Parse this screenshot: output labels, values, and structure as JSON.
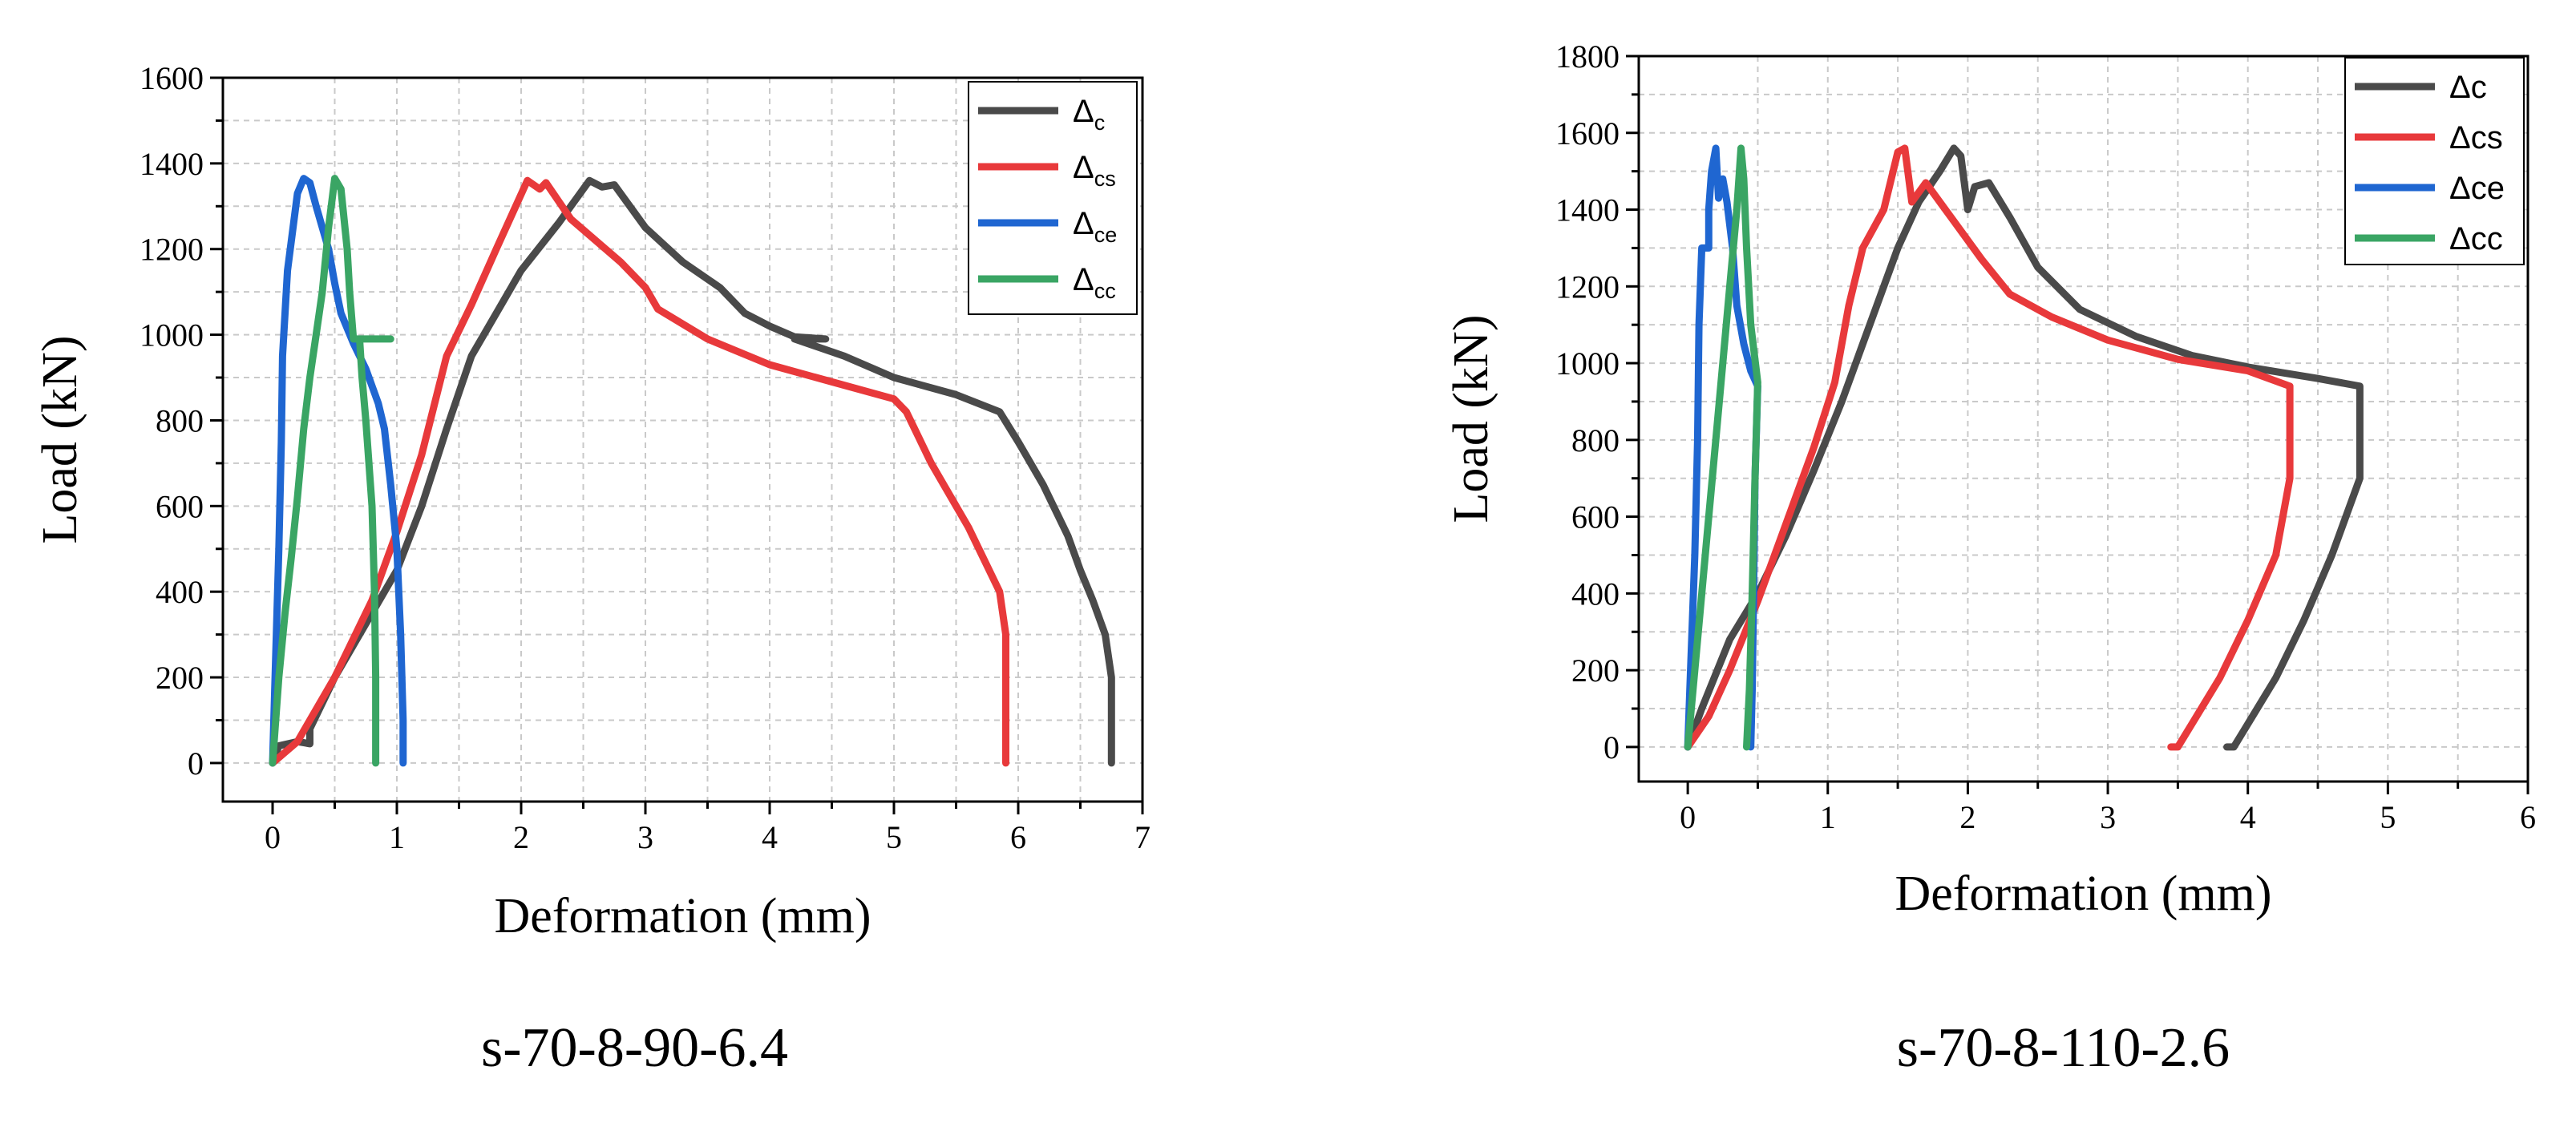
{
  "chart_data": [
    {
      "type": "line",
      "caption": "s-70-8-90-6.4",
      "xlabel": "Deformation (mm)",
      "ylabel": "Load (kN)",
      "xlim": [
        -0.4,
        7
      ],
      "ylim": [
        -90,
        1600
      ],
      "xticks": [
        0,
        1,
        2,
        3,
        4,
        5,
        6,
        7
      ],
      "yticks": [
        0,
        200,
        400,
        600,
        800,
        1000,
        1200,
        1400,
        1600
      ],
      "grid": true,
      "legend_position": "top-right",
      "legend_style": "subscript",
      "series": [
        {
          "name": "Δc",
          "base": "Δ",
          "sub": "c",
          "color": "#4a4a4a",
          "points": [
            [
              0,
              0
            ],
            [
              0.05,
              40
            ],
            [
              0.2,
              50
            ],
            [
              0.3,
              45
            ],
            [
              0.3,
              80
            ],
            [
              0.5,
              200
            ],
            [
              0.8,
              350
            ],
            [
              1,
              450
            ],
            [
              1.2,
              600
            ],
            [
              1.4,
              780
            ],
            [
              1.6,
              950
            ],
            [
              1.8,
              1050
            ],
            [
              2.0,
              1150
            ],
            [
              2.3,
              1260
            ],
            [
              2.55,
              1360
            ],
            [
              2.65,
              1345
            ],
            [
              2.75,
              1350
            ],
            [
              2.85,
              1310
            ],
            [
              3.0,
              1250
            ],
            [
              3.3,
              1170
            ],
            [
              3.6,
              1110
            ],
            [
              3.8,
              1050
            ],
            [
              4.0,
              1020
            ],
            [
              4.2,
              995
            ],
            [
              4.45,
              990
            ],
            [
              4.2,
              990
            ],
            [
              4.6,
              950
            ],
            [
              5.0,
              900
            ],
            [
              5.5,
              860
            ],
            [
              5.85,
              820
            ],
            [
              6.0,
              750
            ],
            [
              6.2,
              650
            ],
            [
              6.4,
              530
            ],
            [
              6.5,
              450
            ],
            [
              6.6,
              380
            ],
            [
              6.7,
              300
            ],
            [
              6.75,
              200
            ],
            [
              6.75,
              0
            ]
          ]
        },
        {
          "name": "Δcs",
          "base": "Δ",
          "sub": "cs",
          "color": "#e8393b",
          "points": [
            [
              0,
              0
            ],
            [
              0.2,
              50
            ],
            [
              0.5,
              200
            ],
            [
              0.8,
              380
            ],
            [
              1.0,
              540
            ],
            [
              1.2,
              720
            ],
            [
              1.4,
              950
            ],
            [
              1.6,
              1070
            ],
            [
              1.8,
              1200
            ],
            [
              2.05,
              1360
            ],
            [
              2.15,
              1340
            ],
            [
              2.2,
              1355
            ],
            [
              2.4,
              1270
            ],
            [
              2.8,
              1170
            ],
            [
              3.0,
              1110
            ],
            [
              3.1,
              1060
            ],
            [
              3.5,
              990
            ],
            [
              4.0,
              930
            ],
            [
              4.5,
              890
            ],
            [
              5.0,
              850
            ],
            [
              5.1,
              820
            ],
            [
              5.3,
              700
            ],
            [
              5.6,
              550
            ],
            [
              5.85,
              400
            ],
            [
              5.9,
              300
            ],
            [
              5.9,
              150
            ],
            [
              5.9,
              0
            ]
          ]
        },
        {
          "name": "Δce",
          "base": "Δ",
          "sub": "ce",
          "color": "#1f66d1",
          "points": [
            [
              0,
              0
            ],
            [
              0.02,
              200
            ],
            [
              0.05,
              500
            ],
            [
              0.07,
              750
            ],
            [
              0.08,
              950
            ],
            [
              0.12,
              1150
            ],
            [
              0.2,
              1330
            ],
            [
              0.25,
              1365
            ],
            [
              0.3,
              1355
            ],
            [
              0.35,
              1300
            ],
            [
              0.45,
              1200
            ],
            [
              0.5,
              1120
            ],
            [
              0.55,
              1050
            ],
            [
              0.65,
              980
            ],
            [
              0.75,
              920
            ],
            [
              0.85,
              840
            ],
            [
              0.9,
              780
            ],
            [
              0.95,
              650
            ],
            [
              1.0,
              500
            ],
            [
              1.03,
              300
            ],
            [
              1.05,
              100
            ],
            [
              1.05,
              0
            ]
          ]
        },
        {
          "name": "Δcc",
          "base": "Δ",
          "sub": "cc",
          "color": "#3aa564",
          "points": [
            [
              0,
              0
            ],
            [
              0.02,
              80
            ],
            [
              0.05,
              200
            ],
            [
              0.1,
              350
            ],
            [
              0.15,
              480
            ],
            [
              0.2,
              620
            ],
            [
              0.25,
              780
            ],
            [
              0.3,
              900
            ],
            [
              0.35,
              1000
            ],
            [
              0.4,
              1100
            ],
            [
              0.45,
              1250
            ],
            [
              0.5,
              1365
            ],
            [
              0.55,
              1340
            ],
            [
              0.6,
              1200
            ],
            [
              0.62,
              1100
            ],
            [
              0.65,
              990
            ],
            [
              0.95,
              990
            ],
            [
              0.7,
              990
            ],
            [
              0.72,
              900
            ],
            [
              0.75,
              800
            ],
            [
              0.8,
              600
            ],
            [
              0.82,
              400
            ],
            [
              0.83,
              200
            ],
            [
              0.83,
              0
            ]
          ]
        }
      ]
    },
    {
      "type": "line",
      "caption": "s-70-8-110-2.6",
      "xlabel": "Deformation (mm)",
      "ylabel": "Load (kN)",
      "xlim": [
        -0.35,
        6
      ],
      "ylim": [
        -90,
        1800
      ],
      "xticks": [
        0,
        1,
        2,
        3,
        4,
        5,
        6
      ],
      "yticks": [
        0,
        200,
        400,
        600,
        800,
        1000,
        1200,
        1400,
        1600,
        1800
      ],
      "grid": true,
      "legend_position": "top-right",
      "legend_style": "plain",
      "series": [
        {
          "name": "Δc",
          "color": "#4a4a4a",
          "points": [
            [
              0,
              0
            ],
            [
              0.1,
              100
            ],
            [
              0.3,
              280
            ],
            [
              0.5,
              400
            ],
            [
              0.7,
              550
            ],
            [
              0.9,
              720
            ],
            [
              1.1,
              900
            ],
            [
              1.25,
              1050
            ],
            [
              1.4,
              1200
            ],
            [
              1.5,
              1300
            ],
            [
              1.65,
              1420
            ],
            [
              1.8,
              1500
            ],
            [
              1.9,
              1560
            ],
            [
              1.95,
              1540
            ],
            [
              2.0,
              1400
            ],
            [
              2.05,
              1460
            ],
            [
              2.15,
              1470
            ],
            [
              2.3,
              1380
            ],
            [
              2.5,
              1250
            ],
            [
              2.8,
              1140
            ],
            [
              3.2,
              1070
            ],
            [
              3.6,
              1020
            ],
            [
              4.0,
              990
            ],
            [
              4.5,
              960
            ],
            [
              4.8,
              940
            ],
            [
              4.8,
              700
            ],
            [
              4.6,
              500
            ],
            [
              4.4,
              330
            ],
            [
              4.2,
              180
            ],
            [
              4.0,
              60
            ],
            [
              3.9,
              0
            ],
            [
              3.85,
              0
            ]
          ]
        },
        {
          "name": "Δcs",
          "color": "#e8393b",
          "points": [
            [
              0,
              0
            ],
            [
              0.15,
              80
            ],
            [
              0.3,
              200
            ],
            [
              0.5,
              380
            ],
            [
              0.7,
              580
            ],
            [
              0.9,
              780
            ],
            [
              1.05,
              950
            ],
            [
              1.15,
              1150
            ],
            [
              1.25,
              1300
            ],
            [
              1.4,
              1400
            ],
            [
              1.5,
              1550
            ],
            [
              1.55,
              1560
            ],
            [
              1.6,
              1420
            ],
            [
              1.7,
              1470
            ],
            [
              1.9,
              1370
            ],
            [
              2.1,
              1270
            ],
            [
              2.3,
              1180
            ],
            [
              2.6,
              1120
            ],
            [
              3.0,
              1060
            ],
            [
              3.5,
              1010
            ],
            [
              4.0,
              980
            ],
            [
              4.3,
              940
            ],
            [
              4.3,
              700
            ],
            [
              4.2,
              500
            ],
            [
              4.0,
              330
            ],
            [
              3.8,
              180
            ],
            [
              3.6,
              60
            ],
            [
              3.5,
              0
            ],
            [
              3.45,
              0
            ]
          ]
        },
        {
          "name": "Δce",
          "color": "#1f66d1",
          "points": [
            [
              0,
              0
            ],
            [
              0.02,
              200
            ],
            [
              0.05,
              500
            ],
            [
              0.07,
              800
            ],
            [
              0.08,
              1100
            ],
            [
              0.1,
              1300
            ],
            [
              0.15,
              1300
            ],
            [
              0.15,
              1400
            ],
            [
              0.17,
              1500
            ],
            [
              0.2,
              1560
            ],
            [
              0.22,
              1430
            ],
            [
              0.25,
              1480
            ],
            [
              0.28,
              1420
            ],
            [
              0.32,
              1300
            ],
            [
              0.35,
              1150
            ],
            [
              0.4,
              1050
            ],
            [
              0.45,
              980
            ],
            [
              0.5,
              940
            ],
            [
              0.48,
              700
            ],
            [
              0.47,
              400
            ],
            [
              0.46,
              150
            ],
            [
              0.45,
              0
            ]
          ]
        },
        {
          "name": "Δcc",
          "color": "#3aa564",
          "points": [
            [
              0,
              0
            ],
            [
              0.05,
              200
            ],
            [
              0.1,
              400
            ],
            [
              0.15,
              600
            ],
            [
              0.2,
              800
            ],
            [
              0.25,
              1000
            ],
            [
              0.3,
              1200
            ],
            [
              0.35,
              1400
            ],
            [
              0.38,
              1560
            ],
            [
              0.4,
              1480
            ],
            [
              0.42,
              1300
            ],
            [
              0.45,
              1100
            ],
            [
              0.5,
              950
            ],
            [
              0.48,
              700
            ],
            [
              0.46,
              400
            ],
            [
              0.44,
              150
            ],
            [
              0.42,
              0
            ]
          ]
        }
      ]
    }
  ]
}
